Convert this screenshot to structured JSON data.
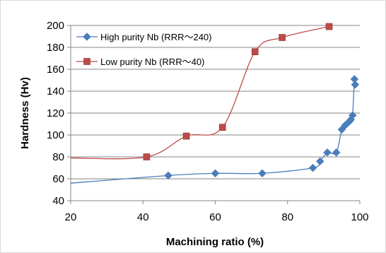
{
  "chart_data": {
    "type": "line",
    "xlabel": "Machining ratio (%)",
    "ylabel": "Hardness (Hv)",
    "xlim": [
      20,
      100
    ],
    "ylim": [
      40,
      200
    ],
    "x_ticks": [
      20,
      40,
      60,
      80,
      100
    ],
    "y_ticks": [
      40,
      60,
      80,
      100,
      120,
      140,
      160,
      180,
      200
    ],
    "grid": "horizontal",
    "legend_position": "top-left",
    "series": [
      {
        "name": "High purity Nb (RRR〜240)",
        "color": "#4a7ebb",
        "marker": "diamond",
        "curve_start": [
          20,
          56
        ],
        "points": [
          [
            47,
            63
          ],
          [
            60,
            65
          ],
          [
            73,
            65
          ],
          [
            87,
            70
          ],
          [
            89,
            76
          ],
          [
            91,
            84
          ],
          [
            93.5,
            84
          ],
          [
            95,
            105
          ],
          [
            96,
            109
          ],
          [
            97,
            112
          ],
          [
            97.5,
            114
          ],
          [
            98,
            118
          ],
          [
            98.5,
            151
          ],
          [
            98.7,
            146
          ]
        ]
      },
      {
        "name": "Low purity Nb (RRR〜40)",
        "color": "#be4b48",
        "marker": "square",
        "curve_start": [
          20,
          79
        ],
        "points": [
          [
            41,
            80
          ],
          [
            52,
            99
          ],
          [
            62,
            107
          ],
          [
            71,
            176
          ],
          [
            78.5,
            189
          ],
          [
            91.5,
            199
          ]
        ]
      }
    ]
  }
}
